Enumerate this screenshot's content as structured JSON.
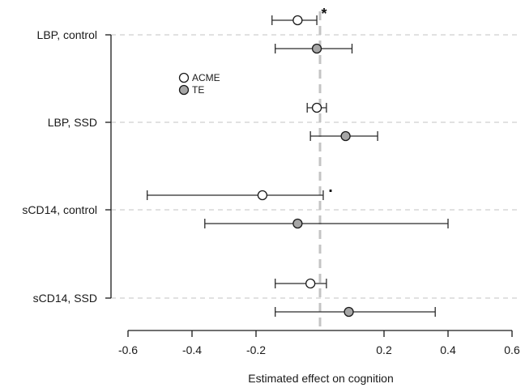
{
  "chart_data": {
    "type": "scatter",
    "xlabel": "Estimated effect on cognition",
    "ylabel": "",
    "xlim": [
      -0.6,
      0.6
    ],
    "xticks": [
      -0.6,
      -0.4,
      -0.2,
      0.2,
      0.4,
      0.6
    ],
    "xtick_labels": [
      "-0.6",
      "-0.4",
      "-0.2",
      "0.2",
      "0.4",
      "0.6"
    ],
    "reference_line": 0,
    "grid": "horizontal dashed",
    "legend_position": "upper-left",
    "categories": [
      "LBP, control",
      "LBP, SSD",
      "sCD14, control",
      "sCD14, SSD"
    ],
    "series": [
      {
        "name": "ACME",
        "marker_fill": "#ffffff",
        "points": [
          {
            "category": "LBP, control",
            "estimate": -0.07,
            "lower": -0.15,
            "upper": -0.01
          },
          {
            "category": "LBP, SSD",
            "estimate": -0.01,
            "lower": -0.04,
            "upper": 0.02
          },
          {
            "category": "sCD14, control",
            "estimate": -0.18,
            "lower": -0.54,
            "upper": 0.01
          },
          {
            "category": "sCD14, SSD",
            "estimate": -0.03,
            "lower": -0.14,
            "upper": 0.02
          }
        ]
      },
      {
        "name": "TE",
        "marker_fill": "#a6a6a6",
        "points": [
          {
            "category": "LBP, control",
            "estimate": -0.01,
            "lower": -0.14,
            "upper": 0.1
          },
          {
            "category": "LBP, SSD",
            "estimate": 0.08,
            "lower": -0.03,
            "upper": 0.18
          },
          {
            "category": "sCD14, control",
            "estimate": -0.07,
            "lower": -0.36,
            "upper": 0.4
          },
          {
            "category": "sCD14, SSD",
            "estimate": 0.09,
            "lower": -0.14,
            "upper": 0.36
          }
        ]
      }
    ],
    "annotations": [
      {
        "category": "LBP, control",
        "text": "*"
      },
      {
        "category": "sCD14, control",
        "text": "."
      }
    ]
  }
}
